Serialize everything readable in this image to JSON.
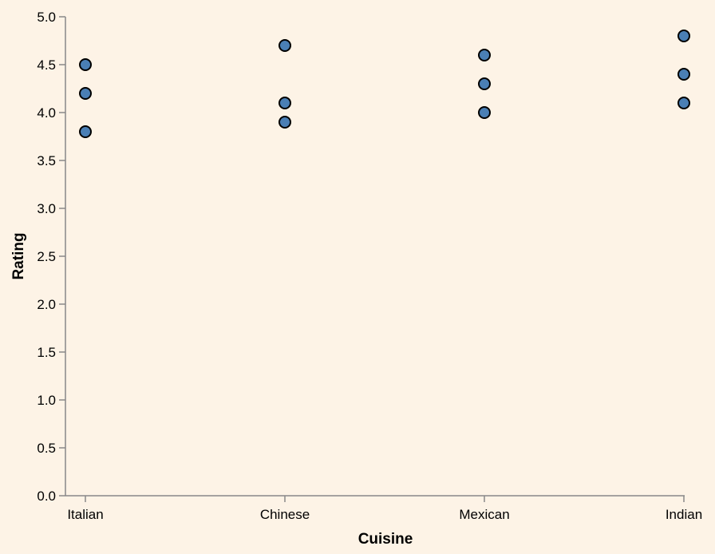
{
  "chart_data": {
    "type": "scatter",
    "title": "",
    "xlabel": "Cuisine",
    "ylabel": "Rating",
    "categories": [
      "Italian",
      "Chinese",
      "Mexican",
      "Indian"
    ],
    "ylim": [
      0,
      5
    ],
    "yticks": [
      "0.0",
      "0.5",
      "1.0",
      "1.5",
      "2.0",
      "2.5",
      "3.0",
      "3.5",
      "4.0",
      "4.5",
      "5.0"
    ],
    "grid": false,
    "legend": "none",
    "point_color": "#4a7fb5",
    "point_stroke": "#000000",
    "background": "#fdf3e6",
    "points": [
      {
        "x": "Italian",
        "y": 4.5
      },
      {
        "x": "Italian",
        "y": 4.2
      },
      {
        "x": "Italian",
        "y": 3.8
      },
      {
        "x": "Chinese",
        "y": 4.7
      },
      {
        "x": "Chinese",
        "y": 4.1
      },
      {
        "x": "Chinese",
        "y": 3.9
      },
      {
        "x": "Mexican",
        "y": 4.6
      },
      {
        "x": "Mexican",
        "y": 4.3
      },
      {
        "x": "Mexican",
        "y": 4.0
      },
      {
        "x": "Indian",
        "y": 4.8
      },
      {
        "x": "Indian",
        "y": 4.4
      },
      {
        "x": "Indian",
        "y": 4.1
      }
    ]
  }
}
